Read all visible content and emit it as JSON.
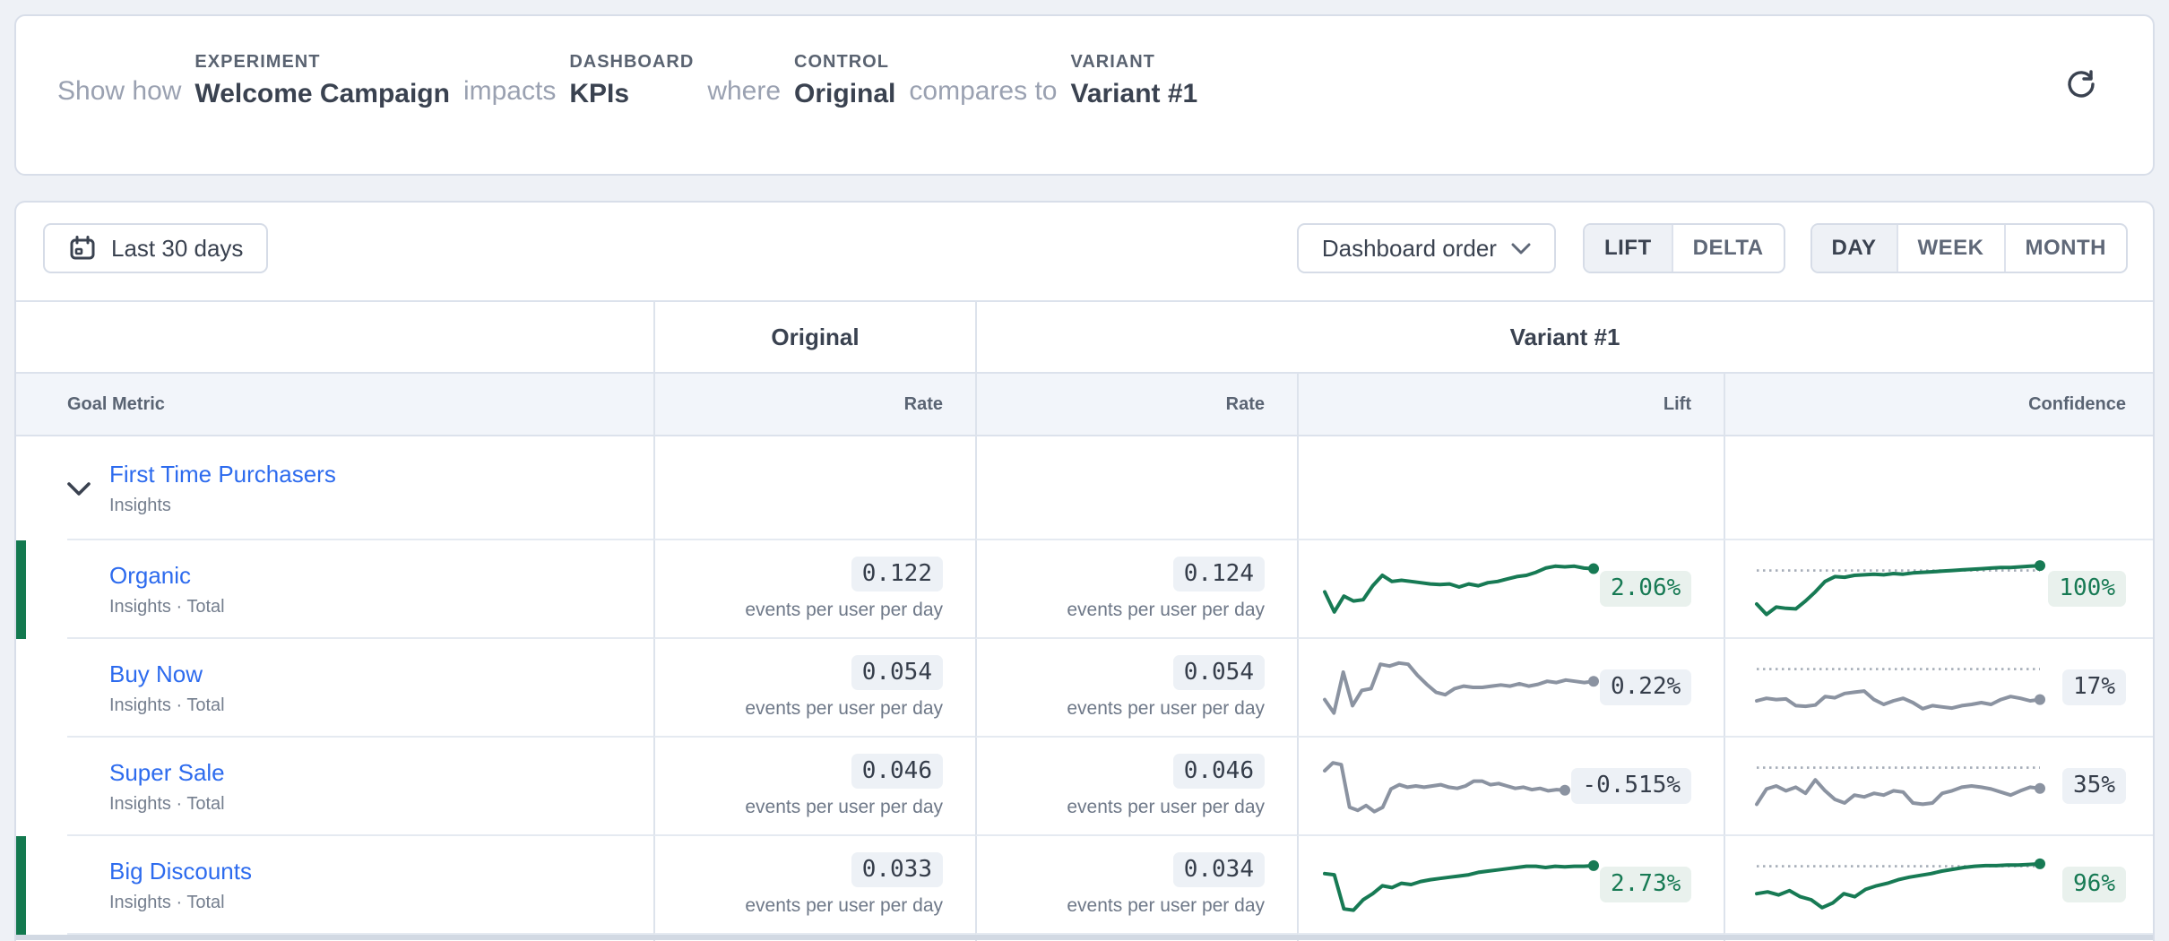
{
  "header": {
    "segments": [
      {
        "type": "muted",
        "text": "Show how"
      },
      {
        "type": "labeled",
        "label": "EXPERIMENT",
        "value": "Welcome Campaign"
      },
      {
        "type": "muted",
        "text": "impacts"
      },
      {
        "type": "labeled",
        "label": "DASHBOARD",
        "value": "KPIs"
      },
      {
        "type": "muted",
        "text": "where"
      },
      {
        "type": "labeled",
        "label": "CONTROL",
        "value": "Original"
      },
      {
        "type": "muted",
        "text": "compares to"
      },
      {
        "type": "labeled",
        "label": "VARIANT",
        "value": "Variant #1"
      }
    ]
  },
  "toolbar": {
    "date_range": "Last 30 days",
    "order_dropdown": "Dashboard order",
    "mode_toggle": {
      "options": [
        "LIFT",
        "DELTA"
      ],
      "selected": "LIFT"
    },
    "granularity_toggle": {
      "options": [
        "DAY",
        "WEEK",
        "MONTH"
      ],
      "selected": "DAY"
    }
  },
  "table": {
    "group_headers": {
      "control": "Original",
      "variant": "Variant #1"
    },
    "columns": {
      "goal_metric": "Goal Metric",
      "rate_control": "Rate",
      "rate_variant": "Rate",
      "lift": "Lift",
      "confidence": "Confidence"
    },
    "group_row": {
      "name": "First Time Purchasers",
      "subtitle": "Insights"
    },
    "rows": [
      {
        "name": "Organic",
        "subtitle": "Insights · Total",
        "significant": true,
        "original_rate": "0.122",
        "variant_rate": "0.124",
        "rate_unit": "events per user per day",
        "lift": "2.06%",
        "confidence": "100%",
        "lift_spark": {
          "tone": "green",
          "points": [
            45,
            12,
            38,
            30,
            32,
            55,
            72,
            62,
            64,
            62,
            60,
            58,
            57,
            58,
            53,
            58,
            55,
            60,
            62,
            66,
            70,
            72,
            77,
            84,
            87,
            86,
            87,
            84,
            83
          ]
        },
        "confidence_spark": {
          "tone": "green",
          "threshold": 80,
          "points": [
            25,
            8,
            20,
            18,
            17,
            30,
            45,
            62,
            70,
            69,
            72,
            73,
            74,
            73,
            75,
            74,
            76,
            77,
            78,
            79,
            80,
            81,
            82,
            83,
            84,
            85,
            85,
            86,
            87,
            88
          ]
        }
      },
      {
        "name": "Buy Now",
        "subtitle": "Insights · Total",
        "significant": false,
        "original_rate": "0.054",
        "variant_rate": "0.054",
        "rate_unit": "events per user per day",
        "lift": "0.22%",
        "confidence": "17%",
        "lift_spark": {
          "tone": "gray",
          "points": [
            30,
            8,
            75,
            20,
            45,
            48,
            88,
            85,
            90,
            88,
            70,
            55,
            42,
            38,
            48,
            52,
            50,
            50,
            52,
            54,
            52,
            56,
            52,
            55,
            60,
            58,
            62,
            60,
            58,
            60
          ]
        },
        "confidence_spark": {
          "tone": "gray",
          "threshold": 80,
          "points": [
            28,
            32,
            30,
            31,
            20,
            19,
            21,
            35,
            33,
            40,
            42,
            44,
            30,
            22,
            28,
            32,
            25,
            15,
            20,
            18,
            16,
            20,
            22,
            25,
            22,
            30,
            35,
            32,
            28,
            30
          ]
        }
      },
      {
        "name": "Super Sale",
        "subtitle": "Insights · Total",
        "significant": false,
        "original_rate": "0.046",
        "variant_rate": "0.046",
        "rate_unit": "events per user per day",
        "lift": "-0.515%",
        "confidence": "35%",
        "lift_spark": {
          "tone": "gray",
          "points": [
            75,
            88,
            85,
            15,
            10,
            18,
            8,
            15,
            45,
            52,
            48,
            50,
            48,
            50,
            52,
            48,
            46,
            50,
            58,
            58,
            52,
            54,
            50,
            46,
            48,
            44,
            46,
            42,
            44,
            43
          ]
        },
        "confidence_spark": {
          "tone": "gray",
          "threshold": 80,
          "points": [
            20,
            45,
            50,
            42,
            48,
            38,
            60,
            42,
            28,
            22,
            35,
            32,
            38,
            35,
            42,
            40,
            22,
            20,
            22,
            38,
            42,
            48,
            50,
            48,
            45,
            40,
            35,
            42,
            48,
            46
          ]
        }
      },
      {
        "name": "Big Discounts",
        "subtitle": "Insights · Total",
        "significant": true,
        "original_rate": "0.033",
        "variant_rate": "0.034",
        "rate_unit": "events per user per day",
        "lift": "2.73%",
        "confidence": "96%",
        "lift_spark": {
          "tone": "green",
          "points": [
            68,
            66,
            10,
            8,
            25,
            35,
            48,
            45,
            52,
            50,
            55,
            58,
            60,
            62,
            64,
            66,
            70,
            72,
            74,
            76,
            78,
            80,
            80,
            78,
            80,
            79,
            80,
            80,
            81
          ]
        },
        "confidence_spark": {
          "tone": "green",
          "threshold": 80,
          "points": [
            35,
            38,
            33,
            40,
            30,
            25,
            12,
            20,
            35,
            30,
            42,
            48,
            52,
            58,
            62,
            65,
            68,
            72,
            75,
            78,
            80,
            81,
            81,
            82,
            82,
            83,
            84
          ]
        }
      }
    ]
  },
  "colors": {
    "green": "#177a54",
    "gray": "#8b93a1",
    "threshold": "#a6adb8",
    "significance_bar": "#13794f",
    "link_blue": "#2d6bee",
    "page_bg": "#eef1f6"
  }
}
